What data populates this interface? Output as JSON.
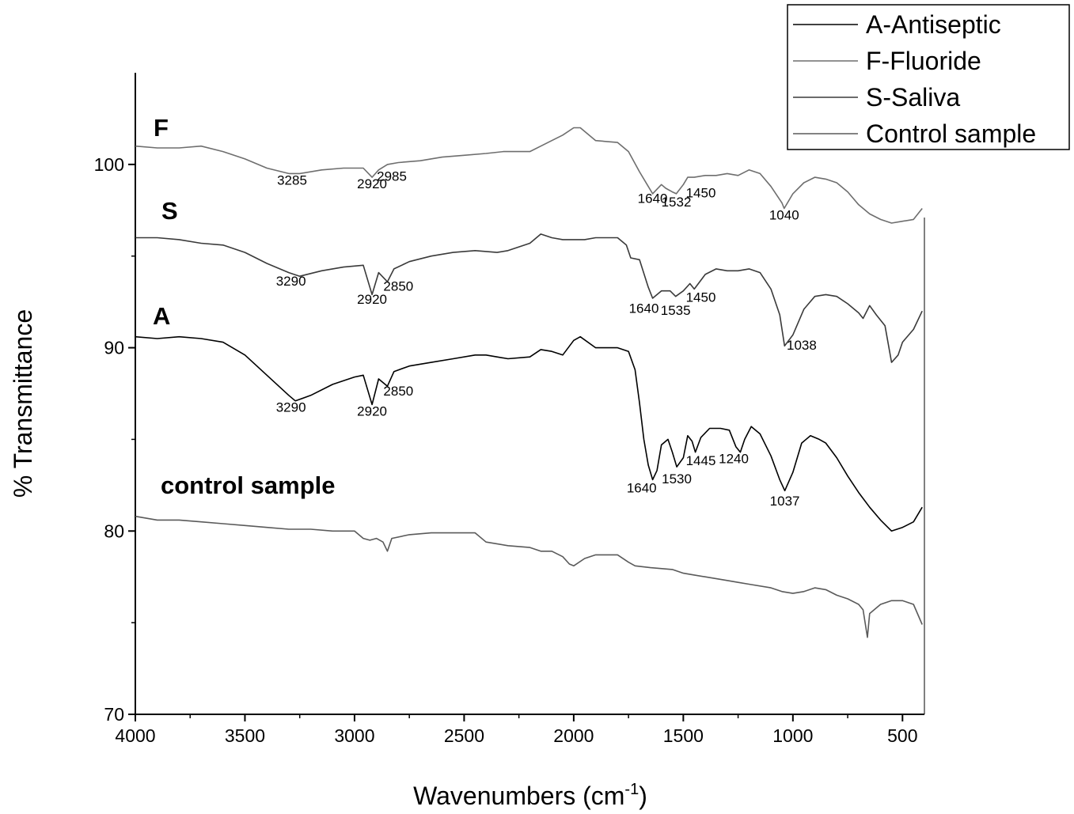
{
  "chart_data": {
    "type": "line",
    "xlabel": "Wavenumbers (cm",
    "xlabel_sup": "-1",
    "xlabel_tail": ")",
    "ylabel": "% Transmittance",
    "xlim": [
      4000,
      400
    ],
    "ylim": [
      70,
      105
    ],
    "x_ticks": [
      4000,
      3500,
      3000,
      2500,
      2000,
      1500,
      1000,
      500
    ],
    "y_ticks": [
      70,
      80,
      90,
      100
    ],
    "grid": false,
    "legend_position": "top-right",
    "legend": [
      "A-Antiseptic",
      "F-Fluoride",
      "S-Saliva",
      "Control sample"
    ],
    "series": [
      {
        "key": "F",
        "tag": "F",
        "color": "#6e6e6e",
        "points": [
          [
            4000,
            101.0
          ],
          [
            3900,
            100.9
          ],
          [
            3800,
            100.9
          ],
          [
            3700,
            101.0
          ],
          [
            3600,
            100.7
          ],
          [
            3500,
            100.3
          ],
          [
            3400,
            99.8
          ],
          [
            3300,
            99.5
          ],
          [
            3250,
            99.5
          ],
          [
            3150,
            99.7
          ],
          [
            3050,
            99.8
          ],
          [
            2960,
            99.8
          ],
          [
            2920,
            99.3
          ],
          [
            2890,
            99.7
          ],
          [
            2850,
            100.0
          ],
          [
            2800,
            100.1
          ],
          [
            2700,
            100.2
          ],
          [
            2600,
            100.4
          ],
          [
            2500,
            100.5
          ],
          [
            2400,
            100.6
          ],
          [
            2320,
            100.7
          ],
          [
            2200,
            100.7
          ],
          [
            2150,
            101.0
          ],
          [
            2100,
            101.3
          ],
          [
            2050,
            101.6
          ],
          [
            2000,
            102.0
          ],
          [
            1970,
            102.0
          ],
          [
            1900,
            101.3
          ],
          [
            1800,
            101.2
          ],
          [
            1750,
            100.7
          ],
          [
            1700,
            99.6
          ],
          [
            1660,
            98.8
          ],
          [
            1640,
            98.4
          ],
          [
            1600,
            98.9
          ],
          [
            1580,
            98.7
          ],
          [
            1550,
            98.5
          ],
          [
            1532,
            98.4
          ],
          [
            1500,
            98.9
          ],
          [
            1480,
            99.3
          ],
          [
            1450,
            99.3
          ],
          [
            1400,
            99.4
          ],
          [
            1350,
            99.4
          ],
          [
            1300,
            99.5
          ],
          [
            1250,
            99.4
          ],
          [
            1200,
            99.7
          ],
          [
            1150,
            99.5
          ],
          [
            1100,
            98.8
          ],
          [
            1050,
            97.9
          ],
          [
            1040,
            97.6
          ],
          [
            1000,
            98.4
          ],
          [
            950,
            99.0
          ],
          [
            900,
            99.3
          ],
          [
            850,
            99.2
          ],
          [
            800,
            99.0
          ],
          [
            750,
            98.5
          ],
          [
            700,
            97.8
          ],
          [
            650,
            97.3
          ],
          [
            600,
            97.0
          ],
          [
            550,
            96.8
          ],
          [
            500,
            96.9
          ],
          [
            450,
            97.0
          ],
          [
            410,
            97.6
          ]
        ],
        "annotations": [
          {
            "text": "3285",
            "x": 3285,
            "y": 98.9
          },
          {
            "text": "2920",
            "x": 2920,
            "y": 98.7
          },
          {
            "text": "2985",
            "x": 2830,
            "y": 99.1
          },
          {
            "text": "1640",
            "x": 1640,
            "y": 97.9
          },
          {
            "text": "1532",
            "x": 1532,
            "y": 97.7
          },
          {
            "text": "1450",
            "x": 1420,
            "y": 98.2
          },
          {
            "text": "1040",
            "x": 1040,
            "y": 97.0
          }
        ]
      },
      {
        "key": "S",
        "tag": "S",
        "color": "#3a3a3a",
        "points": [
          [
            4000,
            96.0
          ],
          [
            3900,
            96.0
          ],
          [
            3800,
            95.9
          ],
          [
            3700,
            95.7
          ],
          [
            3600,
            95.6
          ],
          [
            3500,
            95.2
          ],
          [
            3400,
            94.6
          ],
          [
            3300,
            94.1
          ],
          [
            3250,
            93.9
          ],
          [
            3150,
            94.2
          ],
          [
            3050,
            94.4
          ],
          [
            2960,
            94.5
          ],
          [
            2920,
            92.9
          ],
          [
            2890,
            94.1
          ],
          [
            2850,
            93.6
          ],
          [
            2820,
            94.3
          ],
          [
            2750,
            94.7
          ],
          [
            2650,
            95.0
          ],
          [
            2550,
            95.2
          ],
          [
            2450,
            95.3
          ],
          [
            2350,
            95.2
          ],
          [
            2300,
            95.3
          ],
          [
            2200,
            95.7
          ],
          [
            2150,
            96.2
          ],
          [
            2100,
            96.0
          ],
          [
            2050,
            95.9
          ],
          [
            2000,
            95.9
          ],
          [
            1950,
            95.9
          ],
          [
            1900,
            96.0
          ],
          [
            1800,
            96.0
          ],
          [
            1760,
            95.6
          ],
          [
            1740,
            94.9
          ],
          [
            1700,
            94.8
          ],
          [
            1660,
            93.3
          ],
          [
            1640,
            92.7
          ],
          [
            1600,
            93.1
          ],
          [
            1560,
            93.1
          ],
          [
            1535,
            92.8
          ],
          [
            1500,
            93.1
          ],
          [
            1470,
            93.5
          ],
          [
            1450,
            93.2
          ],
          [
            1400,
            94.0
          ],
          [
            1350,
            94.3
          ],
          [
            1300,
            94.2
          ],
          [
            1250,
            94.2
          ],
          [
            1200,
            94.3
          ],
          [
            1150,
            94.1
          ],
          [
            1100,
            93.2
          ],
          [
            1060,
            91.8
          ],
          [
            1038,
            90.1
          ],
          [
            1000,
            90.7
          ],
          [
            950,
            92.1
          ],
          [
            900,
            92.8
          ],
          [
            850,
            92.9
          ],
          [
            800,
            92.8
          ],
          [
            750,
            92.4
          ],
          [
            700,
            91.9
          ],
          [
            680,
            91.6
          ],
          [
            650,
            92.3
          ],
          [
            620,
            91.8
          ],
          [
            580,
            91.2
          ],
          [
            550,
            89.2
          ],
          [
            520,
            89.6
          ],
          [
            500,
            90.3
          ],
          [
            450,
            91.0
          ],
          [
            410,
            92.0
          ]
        ],
        "annotations": [
          {
            "text": "3290",
            "x": 3290,
            "y": 93.4
          },
          {
            "text": "2920",
            "x": 2920,
            "y": 92.4
          },
          {
            "text": "2850",
            "x": 2800,
            "y": 93.1
          },
          {
            "text": "1640",
            "x": 1680,
            "y": 91.9
          },
          {
            "text": "1535",
            "x": 1535,
            "y": 91.8
          },
          {
            "text": "1450",
            "x": 1420,
            "y": 92.5
          },
          {
            "text": "1038",
            "x": 960,
            "y": 89.9
          }
        ]
      },
      {
        "key": "A",
        "tag": "A",
        "color": "#000000",
        "points": [
          [
            4000,
            90.6
          ],
          [
            3900,
            90.5
          ],
          [
            3800,
            90.6
          ],
          [
            3700,
            90.5
          ],
          [
            3600,
            90.3
          ],
          [
            3500,
            89.6
          ],
          [
            3400,
            88.5
          ],
          [
            3300,
            87.4
          ],
          [
            3270,
            87.1
          ],
          [
            3200,
            87.4
          ],
          [
            3100,
            88.0
          ],
          [
            3000,
            88.4
          ],
          [
            2960,
            88.5
          ],
          [
            2920,
            86.9
          ],
          [
            2890,
            88.3
          ],
          [
            2850,
            87.9
          ],
          [
            2820,
            88.7
          ],
          [
            2750,
            89.0
          ],
          [
            2650,
            89.2
          ],
          [
            2550,
            89.4
          ],
          [
            2450,
            89.6
          ],
          [
            2400,
            89.6
          ],
          [
            2350,
            89.5
          ],
          [
            2300,
            89.4
          ],
          [
            2200,
            89.5
          ],
          [
            2150,
            89.9
          ],
          [
            2100,
            89.8
          ],
          [
            2050,
            89.6
          ],
          [
            2000,
            90.4
          ],
          [
            1970,
            90.6
          ],
          [
            1900,
            90.0
          ],
          [
            1800,
            90.0
          ],
          [
            1750,
            89.8
          ],
          [
            1720,
            88.8
          ],
          [
            1700,
            87.0
          ],
          [
            1680,
            85.0
          ],
          [
            1660,
            83.6
          ],
          [
            1640,
            82.8
          ],
          [
            1620,
            83.3
          ],
          [
            1600,
            84.7
          ],
          [
            1570,
            85.0
          ],
          [
            1550,
            84.3
          ],
          [
            1530,
            83.5
          ],
          [
            1500,
            84.0
          ],
          [
            1480,
            85.2
          ],
          [
            1460,
            84.9
          ],
          [
            1445,
            84.3
          ],
          [
            1420,
            85.1
          ],
          [
            1380,
            85.6
          ],
          [
            1330,
            85.6
          ],
          [
            1290,
            85.5
          ],
          [
            1260,
            84.6
          ],
          [
            1240,
            84.3
          ],
          [
            1220,
            85.0
          ],
          [
            1190,
            85.7
          ],
          [
            1150,
            85.3
          ],
          [
            1100,
            84.1
          ],
          [
            1060,
            82.8
          ],
          [
            1037,
            82.2
          ],
          [
            1000,
            83.2
          ],
          [
            960,
            84.8
          ],
          [
            920,
            85.2
          ],
          [
            880,
            85.0
          ],
          [
            850,
            84.8
          ],
          [
            800,
            84.0
          ],
          [
            750,
            83.0
          ],
          [
            700,
            82.1
          ],
          [
            650,
            81.3
          ],
          [
            600,
            80.6
          ],
          [
            550,
            80.0
          ],
          [
            500,
            80.2
          ],
          [
            450,
            80.5
          ],
          [
            410,
            81.3
          ]
        ],
        "annotations": [
          {
            "text": "3290",
            "x": 3290,
            "y": 86.5
          },
          {
            "text": "2920",
            "x": 2920,
            "y": 86.3
          },
          {
            "text": "2850",
            "x": 2800,
            "y": 87.4
          },
          {
            "text": "1640",
            "x": 1690,
            "y": 82.1
          },
          {
            "text": "1530",
            "x": 1530,
            "y": 82.6
          },
          {
            "text": "1445",
            "x": 1420,
            "y": 83.6
          },
          {
            "text": "1240",
            "x": 1270,
            "y": 83.7
          },
          {
            "text": "1037",
            "x": 1037,
            "y": 81.4
          }
        ]
      },
      {
        "key": "control",
        "tag": "control sample",
        "color": "#5a5a5a",
        "points": [
          [
            4000,
            80.8
          ],
          [
            3900,
            80.6
          ],
          [
            3800,
            80.6
          ],
          [
            3700,
            80.5
          ],
          [
            3600,
            80.4
          ],
          [
            3500,
            80.3
          ],
          [
            3400,
            80.2
          ],
          [
            3300,
            80.1
          ],
          [
            3200,
            80.1
          ],
          [
            3100,
            80.0
          ],
          [
            3000,
            80.0
          ],
          [
            2960,
            79.6
          ],
          [
            2930,
            79.5
          ],
          [
            2900,
            79.6
          ],
          [
            2870,
            79.4
          ],
          [
            2850,
            78.9
          ],
          [
            2830,
            79.6
          ],
          [
            2750,
            79.8
          ],
          [
            2650,
            79.9
          ],
          [
            2550,
            79.9
          ],
          [
            2450,
            79.9
          ],
          [
            2400,
            79.4
          ],
          [
            2300,
            79.2
          ],
          [
            2200,
            79.1
          ],
          [
            2150,
            78.9
          ],
          [
            2100,
            78.9
          ],
          [
            2050,
            78.6
          ],
          [
            2020,
            78.2
          ],
          [
            2000,
            78.1
          ],
          [
            1950,
            78.5
          ],
          [
            1900,
            78.7
          ],
          [
            1800,
            78.7
          ],
          [
            1750,
            78.3
          ],
          [
            1720,
            78.1
          ],
          [
            1650,
            78.0
          ],
          [
            1550,
            77.9
          ],
          [
            1500,
            77.7
          ],
          [
            1450,
            77.6
          ],
          [
            1400,
            77.5
          ],
          [
            1300,
            77.3
          ],
          [
            1250,
            77.2
          ],
          [
            1200,
            77.1
          ],
          [
            1100,
            76.9
          ],
          [
            1050,
            76.7
          ],
          [
            1000,
            76.6
          ],
          [
            950,
            76.7
          ],
          [
            900,
            76.9
          ],
          [
            850,
            76.8
          ],
          [
            800,
            76.5
          ],
          [
            750,
            76.3
          ],
          [
            700,
            76.0
          ],
          [
            680,
            75.7
          ],
          [
            660,
            74.2
          ],
          [
            650,
            75.5
          ],
          [
            600,
            76.0
          ],
          [
            550,
            76.2
          ],
          [
            500,
            76.2
          ],
          [
            450,
            76.0
          ],
          [
            410,
            74.9
          ]
        ],
        "annotations": []
      }
    ]
  },
  "legend_colors": [
    "#000000",
    "#6e6e6e",
    "#3a3a3a",
    "#5a5a5a"
  ]
}
